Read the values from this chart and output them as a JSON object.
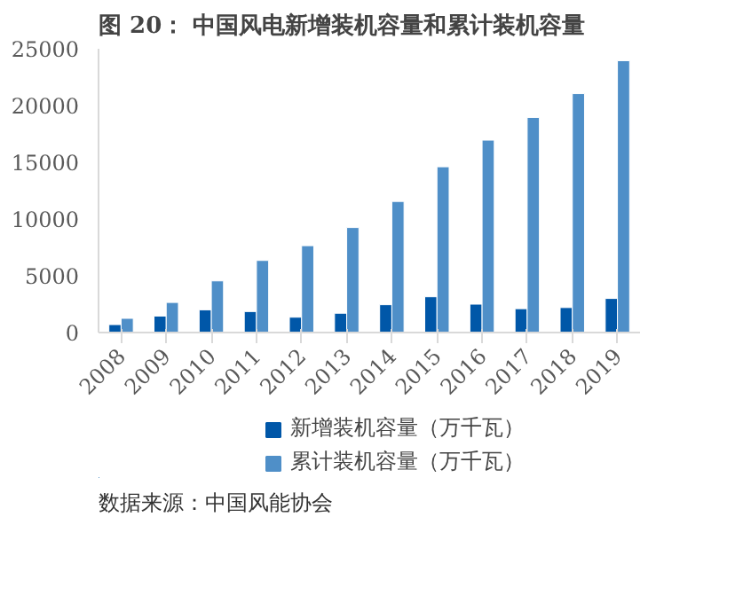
{
  "chart_data": {
    "type": "bar",
    "title": "图 20：  中国风电新增装机容量和累计装机容量",
    "categories": [
      "2008",
      "2009",
      "2010",
      "2011",
      "2012",
      "2013",
      "2014",
      "2015",
      "2016",
      "2017",
      "2018",
      "2019"
    ],
    "series": [
      {
        "name": "新增装机容量（万千瓦）",
        "color": "#0057a8",
        "values": [
          700,
          1450,
          2000,
          1850,
          1350,
          1700,
          2450,
          3150,
          2500,
          2100,
          2200,
          3000
        ]
      },
      {
        "name": "累计装机容量（万千瓦）",
        "color": "#4f8fc8",
        "values": [
          1250,
          2650,
          4550,
          6350,
          7650,
          9250,
          11550,
          14600,
          16950,
          18950,
          21050,
          23950
        ]
      }
    ],
    "ylim": [
      0,
      25000
    ],
    "yticks": [
      0,
      5000,
      10000,
      15000,
      20000,
      25000
    ],
    "grid": false,
    "legend": "bottom",
    "annotations": [
      "数据来源：中国风能协会"
    ]
  }
}
